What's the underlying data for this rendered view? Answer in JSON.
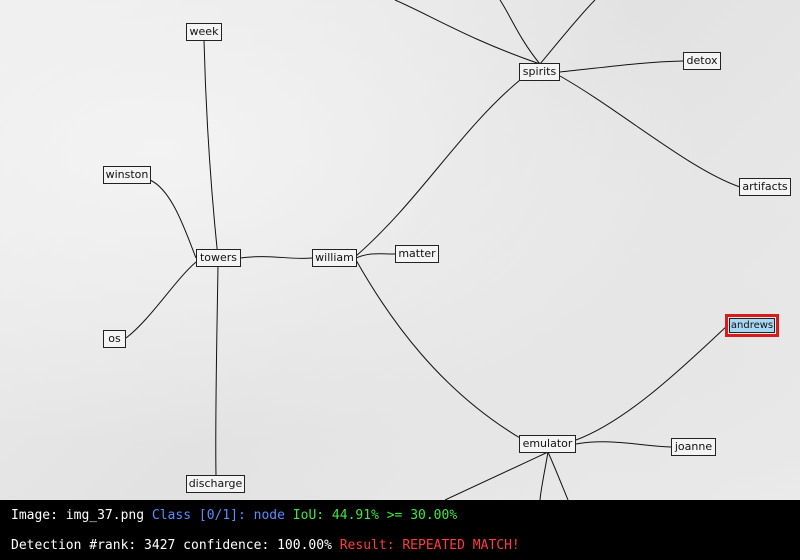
{
  "graph": {
    "nodes": [
      {
        "id": "week",
        "label": "week"
      },
      {
        "id": "winston",
        "label": "winston"
      },
      {
        "id": "towers",
        "label": "towers"
      },
      {
        "id": "william",
        "label": "william"
      },
      {
        "id": "matter",
        "label": "matter"
      },
      {
        "id": "os",
        "label": "os"
      },
      {
        "id": "discharge",
        "label": "discharge"
      },
      {
        "id": "spirits",
        "label": "spirits"
      },
      {
        "id": "detox",
        "label": "detox"
      },
      {
        "id": "artifacts",
        "label": "artifacts"
      },
      {
        "id": "emulator",
        "label": "emulator"
      },
      {
        "id": "joanne",
        "label": "joanne"
      },
      {
        "id": "andrews",
        "label": "andrews",
        "highlighted": true
      }
    ],
    "edges": [
      [
        "week",
        "towers"
      ],
      [
        "winston",
        "towers"
      ],
      [
        "os",
        "towers"
      ],
      [
        "discharge",
        "towers"
      ],
      [
        "towers",
        "william"
      ],
      [
        "william",
        "matter"
      ],
      [
        "william",
        "spirits"
      ],
      [
        "william",
        "emulator"
      ],
      [
        "spirits",
        "detox"
      ],
      [
        "spirits",
        "artifacts"
      ],
      [
        "emulator",
        "joanne"
      ],
      [
        "emulator",
        "andrews"
      ]
    ],
    "highlight_color": "#d81b1b",
    "highlight_fill": "#a9d6f0"
  },
  "status": {
    "image_label": "Image:",
    "image_name": "img_37.png",
    "class_text": "Class [0/1]:",
    "class_name": "node",
    "iou_text": "IoU: 44.91% >= 30.00%",
    "detection_text": "Detection #rank: 3427 confidence: 100.00%",
    "result_text": "Result: REPEATED MATCH!"
  }
}
